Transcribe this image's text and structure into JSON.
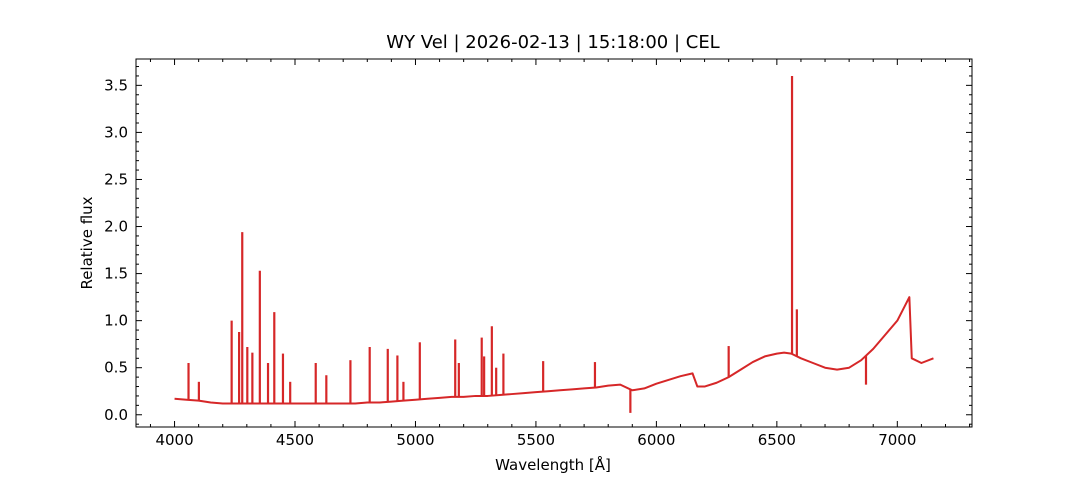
{
  "chart_data": {
    "type": "line",
    "title": "WY Vel | 2026-02-13 | 15:18:00 | CEL",
    "xlabel": "Wavelength [Å]",
    "ylabel": "Relative flux",
    "xlim": [
      3840,
      7310
    ],
    "ylim": [
      -0.13,
      3.78
    ],
    "x_ticks": [
      4000,
      4500,
      5000,
      5500,
      6000,
      6500,
      7000
    ],
    "x_tick_labels": [
      "4000",
      "4500",
      "5000",
      "5500",
      "6000",
      "6500",
      "7000"
    ],
    "y_ticks": [
      0.0,
      0.5,
      1.0,
      1.5,
      2.0,
      2.5,
      3.0,
      3.5
    ],
    "y_tick_labels": [
      "0.0",
      "0.5",
      "1.0",
      "1.5",
      "2.0",
      "2.5",
      "3.0",
      "3.5"
    ],
    "grid": false,
    "line_color": "#d62728",
    "series": [
      {
        "x": [
          4000,
          4050,
          4100,
          4150,
          4200,
          4250,
          4300,
          4350,
          4400,
          4450,
          4500,
          4550,
          4600,
          4650,
          4700,
          4750,
          4800,
          4850,
          4900,
          4950,
          5000,
          5050,
          5100,
          5150,
          5200,
          5250,
          5300,
          5350,
          5400,
          5450,
          5500,
          5550,
          5600,
          5650,
          5700,
          5750,
          5800,
          5850,
          5900,
          5950,
          6000,
          6050,
          6100,
          6150,
          6170,
          6200,
          6250,
          6300,
          6350,
          6400,
          6450,
          6500,
          6530,
          6560,
          6600,
          6650,
          6700,
          6750,
          6800,
          6850,
          6900,
          6950,
          7000,
          7030,
          7050,
          7060,
          7100,
          7150
        ],
        "y": [
          0.17,
          0.16,
          0.15,
          0.13,
          0.12,
          0.12,
          0.12,
          0.12,
          0.12,
          0.12,
          0.12,
          0.12,
          0.12,
          0.12,
          0.12,
          0.12,
          0.13,
          0.13,
          0.14,
          0.15,
          0.16,
          0.17,
          0.18,
          0.19,
          0.19,
          0.2,
          0.2,
          0.21,
          0.22,
          0.23,
          0.24,
          0.25,
          0.26,
          0.27,
          0.28,
          0.29,
          0.31,
          0.32,
          0.26,
          0.28,
          0.33,
          0.37,
          0.41,
          0.44,
          0.3,
          0.3,
          0.34,
          0.4,
          0.48,
          0.56,
          0.62,
          0.65,
          0.66,
          0.65,
          0.6,
          0.55,
          0.5,
          0.48,
          0.5,
          0.58,
          0.7,
          0.85,
          1.0,
          1.15,
          1.25,
          0.6,
          0.55,
          0.6
        ]
      }
    ],
    "emission_lines": [
      {
        "x": 4058,
        "y": 0.55
      },
      {
        "x": 4101,
        "y": 0.35
      },
      {
        "x": 4237,
        "y": 1.0
      },
      {
        "x": 4268,
        "y": 0.88
      },
      {
        "x": 4281,
        "y": 1.94
      },
      {
        "x": 4302,
        "y": 0.72
      },
      {
        "x": 4323,
        "y": 0.66
      },
      {
        "x": 4354,
        "y": 1.53
      },
      {
        "x": 4388,
        "y": 0.55
      },
      {
        "x": 4414,
        "y": 1.09
      },
      {
        "x": 4450,
        "y": 0.65
      },
      {
        "x": 4480,
        "y": 0.35
      },
      {
        "x": 4586,
        "y": 0.55
      },
      {
        "x": 4630,
        "y": 0.42
      },
      {
        "x": 4730,
        "y": 0.58
      },
      {
        "x": 4810,
        "y": 0.72
      },
      {
        "x": 4885,
        "y": 0.7
      },
      {
        "x": 4925,
        "y": 0.63
      },
      {
        "x": 4950,
        "y": 0.35
      },
      {
        "x": 5018,
        "y": 0.77
      },
      {
        "x": 5165,
        "y": 0.8
      },
      {
        "x": 5180,
        "y": 0.55
      },
      {
        "x": 5275,
        "y": 0.82
      },
      {
        "x": 5285,
        "y": 0.62
      },
      {
        "x": 5317,
        "y": 0.94
      },
      {
        "x": 5335,
        "y": 0.5
      },
      {
        "x": 5365,
        "y": 0.65
      },
      {
        "x": 5530,
        "y": 0.57
      },
      {
        "x": 5745,
        "y": 0.56
      },
      {
        "x": 6300,
        "y": 0.73
      },
      {
        "x": 6563,
        "y": 3.6
      },
      {
        "x": 6583,
        "y": 1.12
      }
    ],
    "absorption_lines": [
      {
        "x": 5892,
        "y": 0.02
      },
      {
        "x": 6870,
        "y": 0.32
      }
    ]
  }
}
